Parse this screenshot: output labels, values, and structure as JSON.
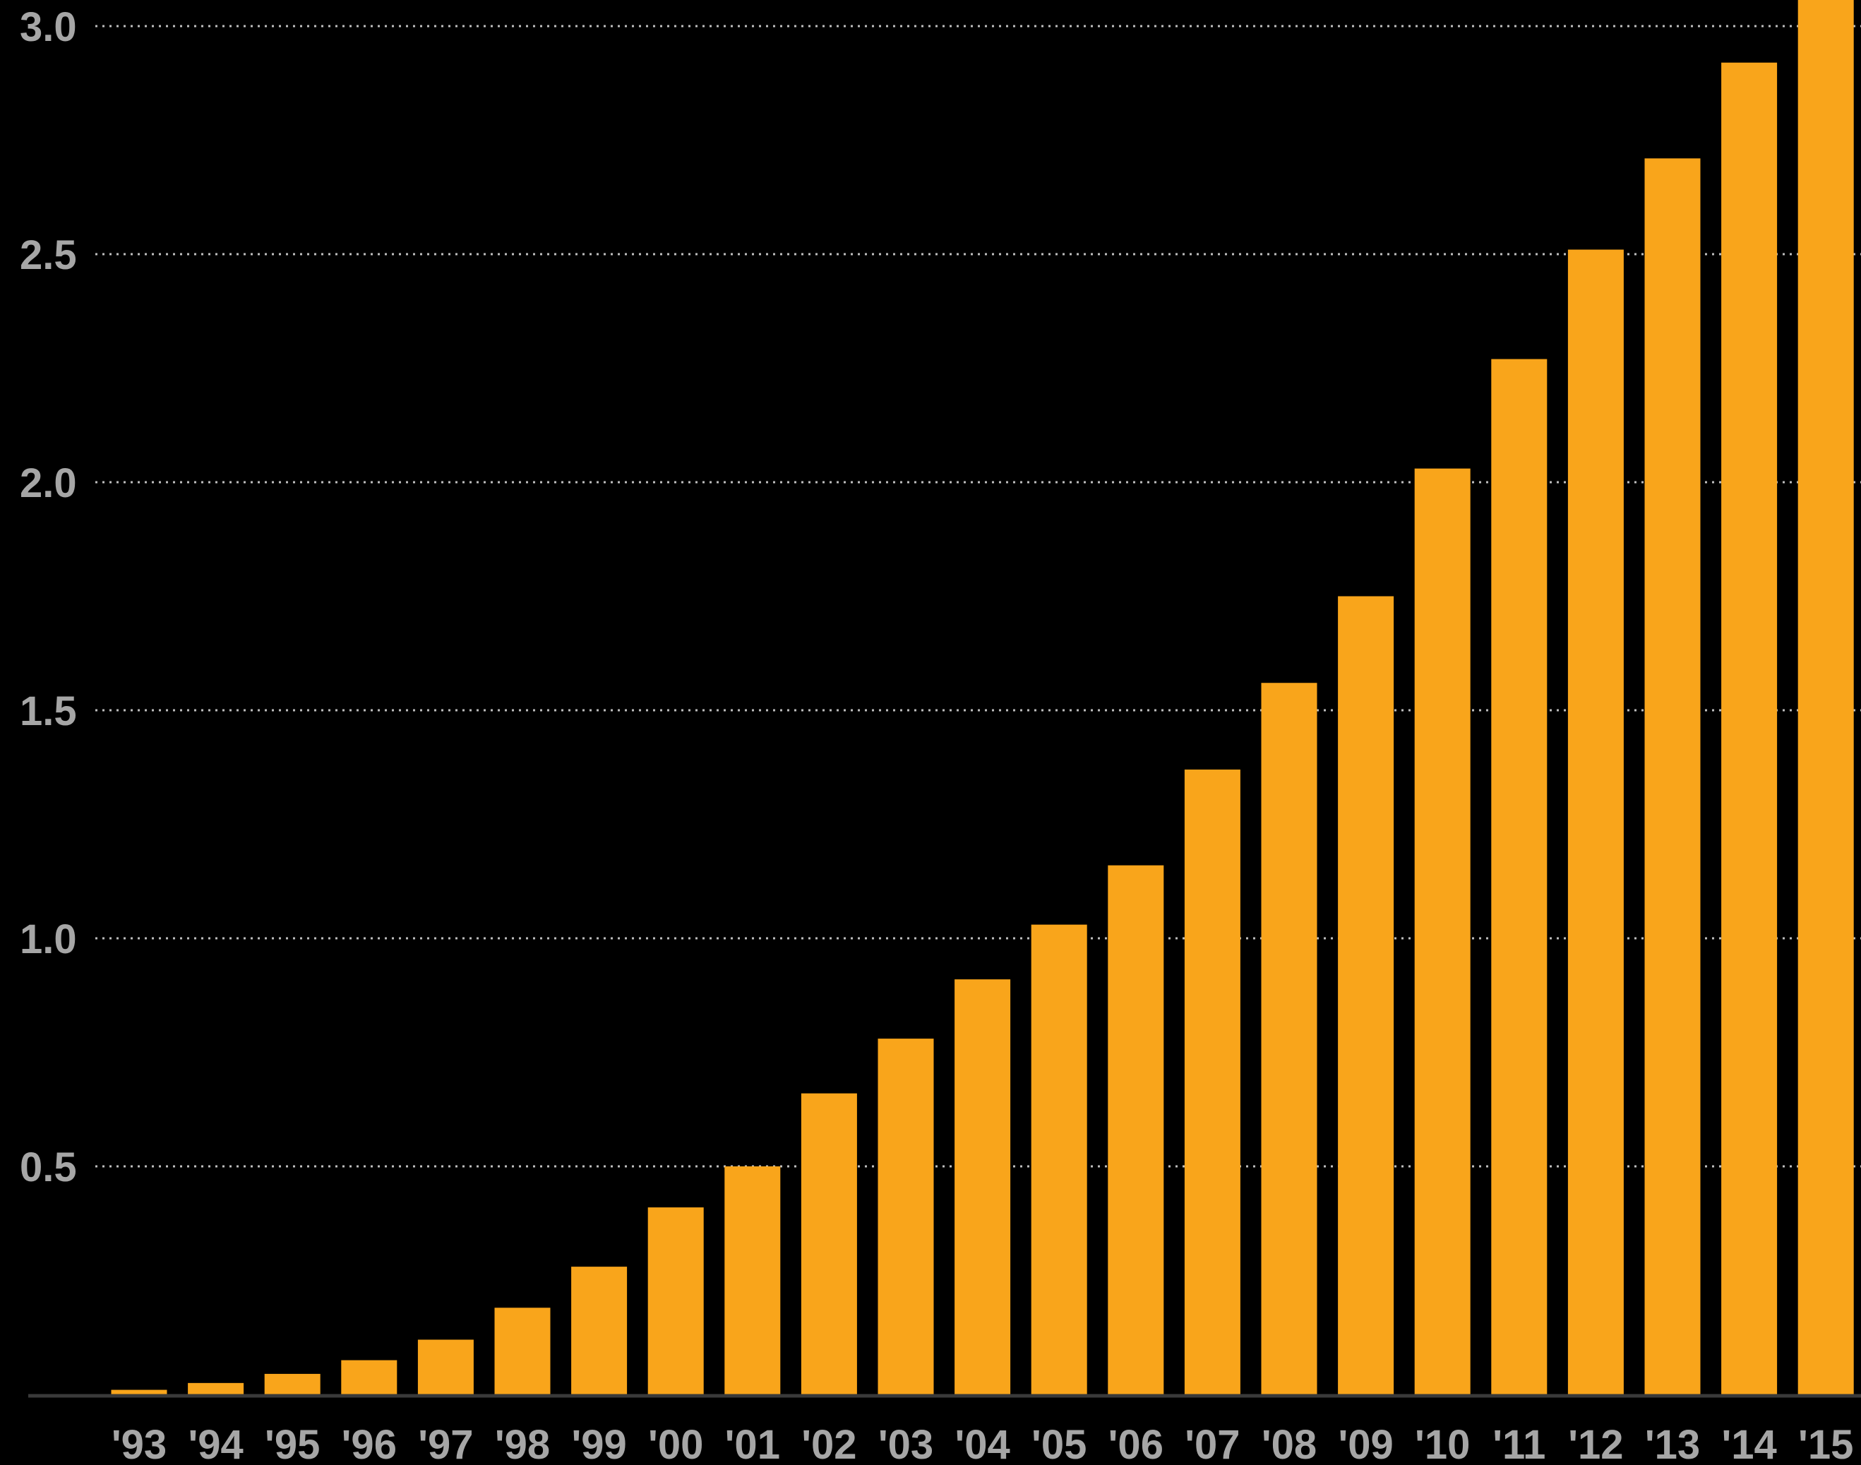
{
  "chart_data": {
    "type": "bar",
    "title": "",
    "xlabel": "",
    "ylabel": "",
    "categories": [
      "'93",
      "'94",
      "'95",
      "'96",
      "'97",
      "'98",
      "'99",
      "'00",
      "'01",
      "'02",
      "'03",
      "'04",
      "'05",
      "'06",
      "'07",
      "'08",
      "'09",
      "'10",
      "'11",
      "'12",
      "'13",
      "'14",
      "'15"
    ],
    "values": [
      0.01,
      0.025,
      0.045,
      0.075,
      0.12,
      0.19,
      0.28,
      0.41,
      0.5,
      0.66,
      0.78,
      0.91,
      1.03,
      1.16,
      1.37,
      1.56,
      1.75,
      2.03,
      2.27,
      2.51,
      2.71,
      2.92,
      3.2
    ],
    "ylim": [
      0,
      3.0
    ],
    "yticks": [
      {
        "value": 0.5,
        "label": "0.5"
      },
      {
        "value": 1.0,
        "label": "1.0"
      },
      {
        "value": 1.5,
        "label": "1.5"
      },
      {
        "value": 2.0,
        "label": "2.0"
      },
      {
        "value": 2.5,
        "label": "2.5"
      },
      {
        "value": 3.0,
        "label": "3.0"
      }
    ],
    "grid": true,
    "legend": "none",
    "colors": {
      "background": "#000000",
      "bar": "#f9a51b",
      "grid": "#bfbfbf",
      "axis": "#3a3a3a",
      "text": "#a6a6a6"
    }
  }
}
